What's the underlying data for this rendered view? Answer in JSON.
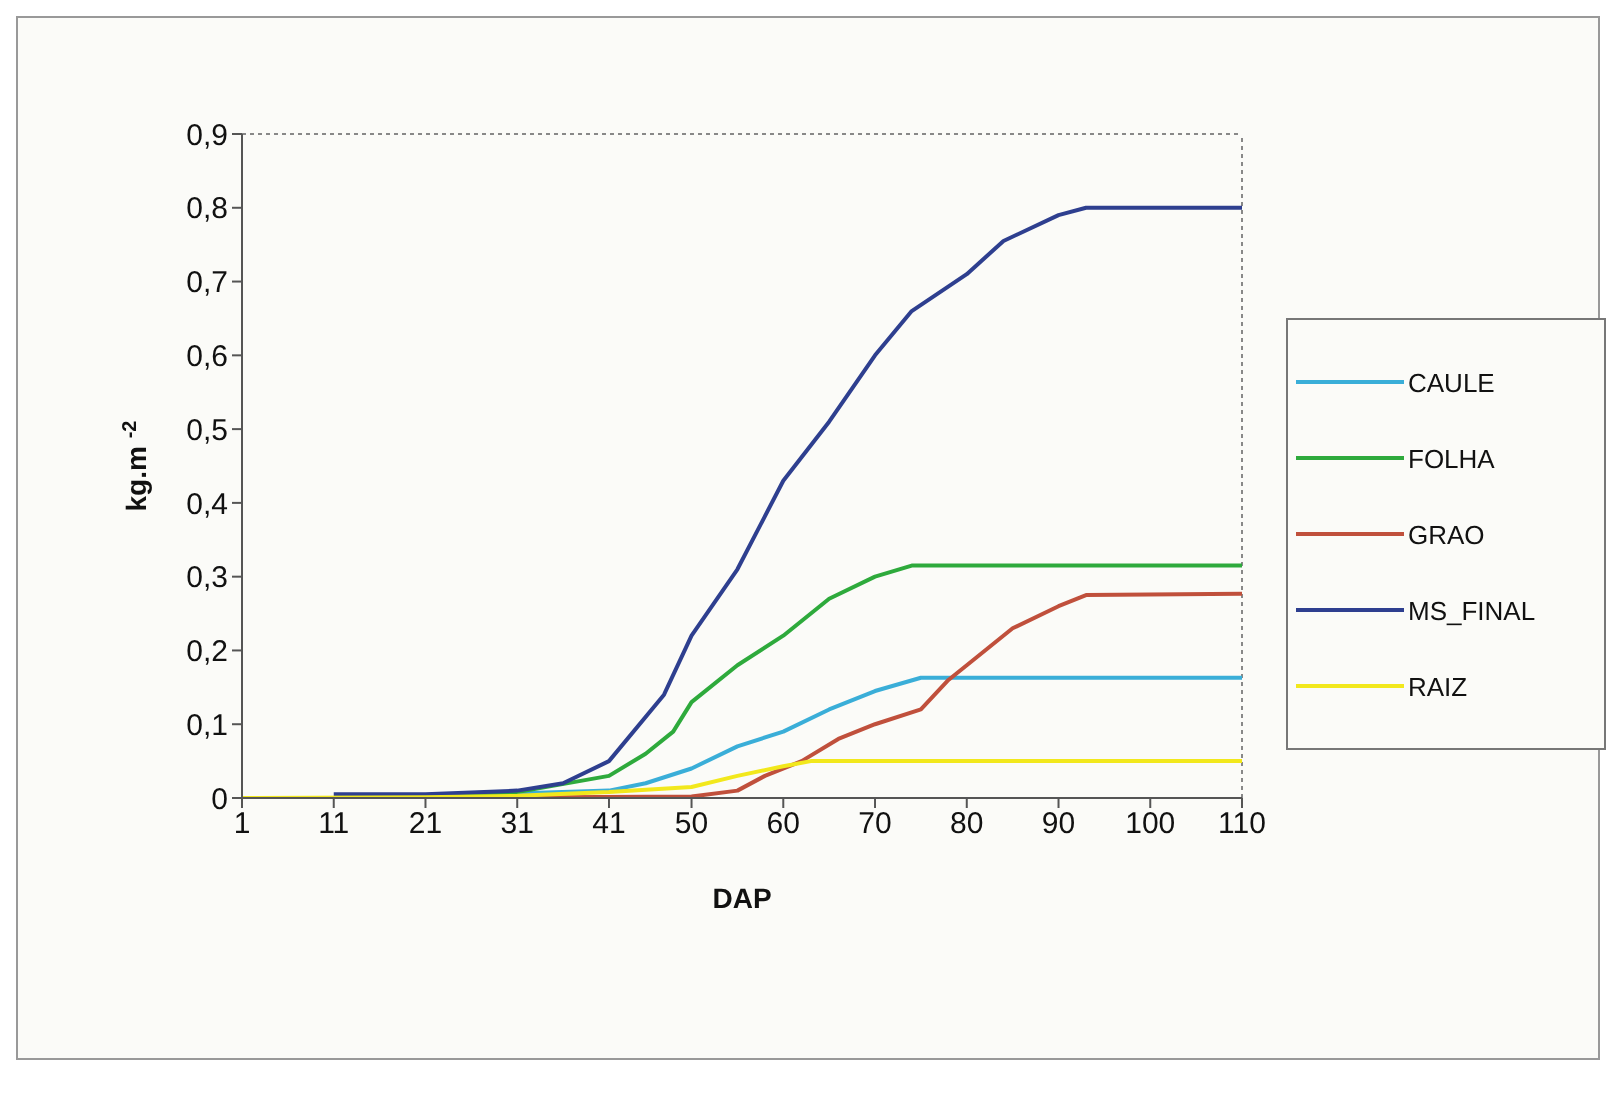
{
  "chart_data": {
    "type": "line",
    "xlabel": "DAP",
    "ylabel": "kg.m $^{-2}$",
    "xlim": [
      1,
      110
    ],
    "xticks": [
      1,
      11,
      21,
      31,
      41,
      50,
      60,
      70,
      80,
      90,
      100,
      110
    ],
    "ylim": [
      0,
      0.9
    ],
    "yticks": [
      0,
      {
        "value": 0.1,
        "label": "0,1"
      },
      {
        "value": 0.2,
        "label": "0,2"
      },
      {
        "value": 0.3,
        "label": "0,3"
      },
      {
        "value": 0.4,
        "label": "0,4"
      },
      {
        "value": 0.5,
        "label": "0,5"
      },
      {
        "value": 0.6,
        "label": "0,6"
      },
      {
        "value": 0.7,
        "label": "0,7"
      },
      {
        "value": 0.8,
        "label": "0,8"
      },
      {
        "value": 0.9,
        "label": "0,9"
      }
    ],
    "grid": false,
    "legend": "right",
    "marker": "none",
    "line_style": "solid",
    "series": [
      {
        "name": "CAULE",
        "color": "#3aaed8",
        "x": [
          21,
          41,
          45,
          50,
          55,
          60,
          65,
          70,
          75,
          110
        ],
        "values": [
          0.002,
          0.01,
          0.02,
          0.04,
          0.07,
          0.09,
          0.12,
          0.145,
          0.163,
          0.163
        ]
      },
      {
        "name": "FOLHA",
        "color": "#2eaa3c",
        "x": [
          21,
          31,
          41,
          45,
          48,
          50,
          55,
          60,
          65,
          70,
          74,
          110
        ],
        "values": [
          0.003,
          0.008,
          0.03,
          0.06,
          0.09,
          0.13,
          0.18,
          0.22,
          0.27,
          0.3,
          0.315,
          0.315
        ]
      },
      {
        "name": "GRAO",
        "color": "#c0503c",
        "x": [
          21,
          50,
          55,
          58,
          62,
          66,
          70,
          75,
          78,
          80,
          85,
          90,
          93,
          110
        ],
        "values": [
          0,
          0.002,
          0.01,
          0.03,
          0.05,
          0.08,
          0.1,
          0.12,
          0.16,
          0.18,
          0.23,
          0.26,
          0.275,
          0.277
        ]
      },
      {
        "name": "MS_FINAL",
        "color": "#2e3f8f",
        "x": [
          11,
          21,
          31,
          36,
          41,
          47,
          50,
          55,
          60,
          65,
          70,
          74,
          80,
          84,
          90,
          93,
          110
        ],
        "values": [
          0.005,
          0.005,
          0.01,
          0.02,
          0.05,
          0.14,
          0.22,
          0.31,
          0.43,
          0.51,
          0.6,
          0.66,
          0.71,
          0.755,
          0.79,
          0.8,
          0.8
        ]
      },
      {
        "name": "RAIZ",
        "color": "#f2e81c",
        "x": [
          1,
          21,
          31,
          41,
          50,
          55,
          60,
          63,
          110
        ],
        "values": [
          0,
          0.001,
          0.003,
          0.008,
          0.015,
          0.03,
          0.043,
          0.05,
          0.05
        ]
      }
    ]
  }
}
